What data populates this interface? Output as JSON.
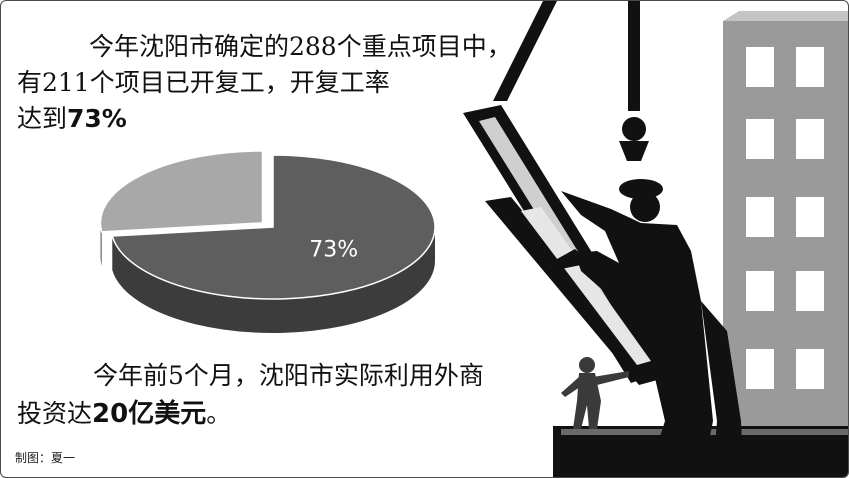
{
  "headline": {
    "line1": "今年沈阳市确定的288个重点项目中，",
    "line2": "有211个项目已开复工，开复工率",
    "line3_prefix": "达到",
    "line3_emphasis": "73%"
  },
  "footer": {
    "line1": "今年前5个月，沈阳市实际利用外商",
    "line2_prefix": "投资达",
    "line2_emphasis": "20亿美元",
    "line2_suffix": "。"
  },
  "credit": "制图：夏一",
  "chart_data": {
    "type": "pie",
    "slices": [
      {
        "value": 73,
        "label": "73%",
        "color": "#5e5e5e"
      },
      {
        "value": 27,
        "label": "",
        "color": "#a8a8a8"
      }
    ],
    "exploded_slice": 1,
    "style": "3d"
  },
  "colors": {
    "pie_main_top": "#5e5e5e",
    "pie_main_side": "#3c3c3c",
    "pie_minor_top": "#a8a8a8",
    "pie_minor_side": "#6f6f6f",
    "building": "#9a9a9a",
    "silhouette": "#111111"
  },
  "illustration": {
    "scene": "construction-worker-guiding-steel-beam",
    "icons": [
      "crane-hook-icon",
      "steel-beam-icon",
      "worker-silhouette-icon",
      "building-icon",
      "small-worker-icon"
    ]
  }
}
